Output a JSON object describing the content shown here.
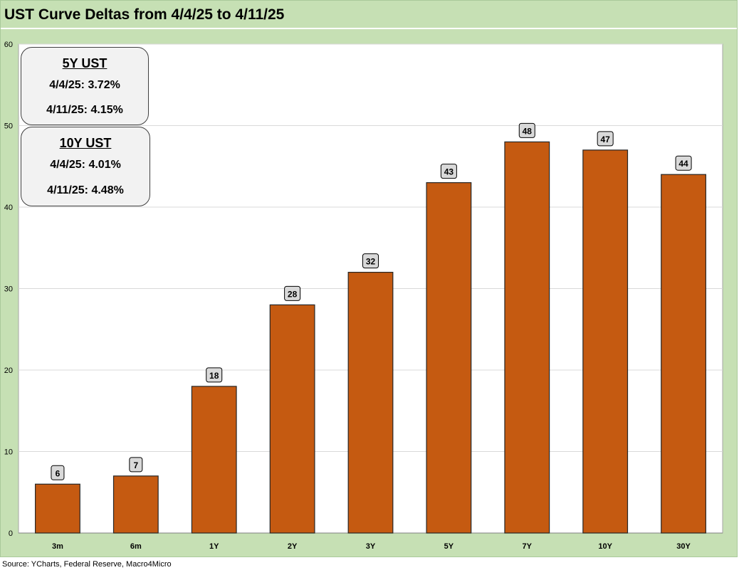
{
  "chart_data": {
    "type": "bar",
    "title": "UST Curve Deltas from 4/4/25 to 4/11/25",
    "categories": [
      "3m",
      "6m",
      "1Y",
      "2Y",
      "3Y",
      "5Y",
      "7Y",
      "10Y",
      "30Y"
    ],
    "values": [
      6,
      7,
      18,
      28,
      32,
      43,
      48,
      47,
      44
    ],
    "ylim": [
      0,
      60
    ],
    "yticks": [
      0,
      10,
      20,
      30,
      40,
      50,
      60
    ],
    "xlabel": "",
    "ylabel": "",
    "grid": true,
    "bar_color": "#c55a11",
    "data_labels": true
  },
  "boxes": [
    {
      "heading": "5Y UST",
      "line1": "4/4/25: 3.72%",
      "line2": "4/11/25: 4.15%"
    },
    {
      "heading": "10Y UST",
      "line1": "4/4/25: 4.01%",
      "line2": "4/11/25: 4.48%"
    }
  ],
  "source": "Source: YCharts, Federal Reserve, Macro4Micro"
}
